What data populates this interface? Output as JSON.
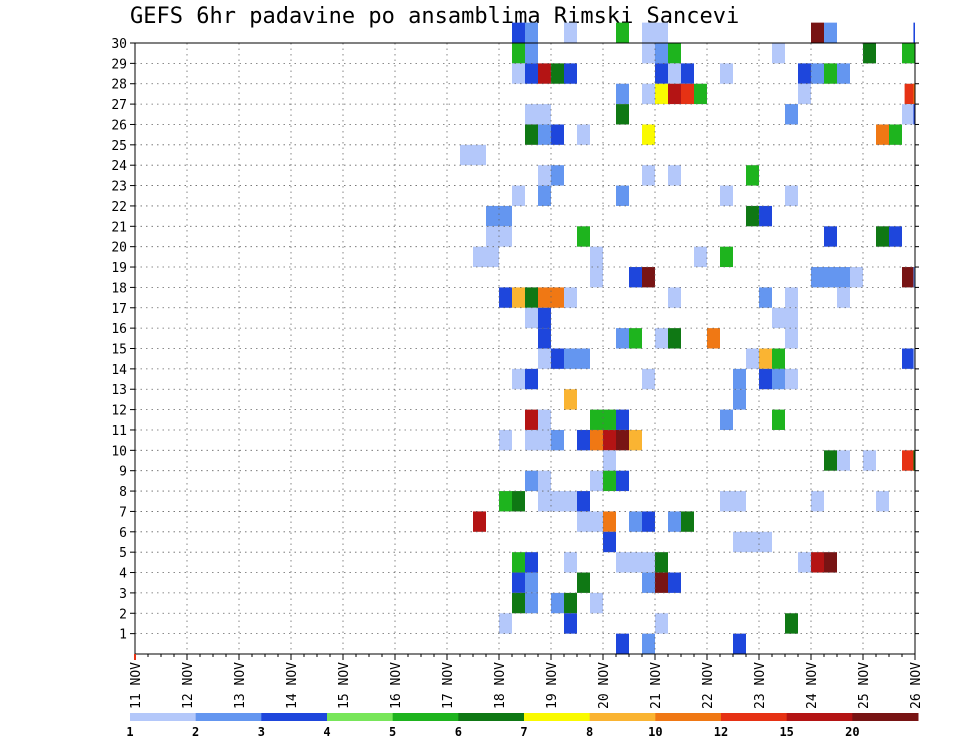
{
  "chart_data": {
    "type": "heatmap",
    "title": "GEFS 6hr padavine po ansamblima Rimski Sancevi",
    "xlabel": "",
    "ylabel": "",
    "x_tick_labels": [
      "11 NOV",
      "12 NOV",
      "13 NOV",
      "14 NOV",
      "15 NOV",
      "16 NOV",
      "17 NOV",
      "18 NOV",
      "19 NOV",
      "20 NOV",
      "21 NOV",
      "22 NOV",
      "23 NOV",
      "24 NOV",
      "25 NOV",
      "26 NOV"
    ],
    "y_tick_labels": [
      "1",
      "2",
      "3",
      "4",
      "5",
      "6",
      "7",
      "8",
      "9",
      "10",
      "11",
      "12",
      "13",
      "14",
      "15",
      "16",
      "17",
      "18",
      "19",
      "20",
      "21",
      "22",
      "23",
      "24",
      "25",
      "26",
      "27",
      "28",
      "29",
      "30"
    ],
    "xlim": [
      0,
      15
    ],
    "ylim": [
      0,
      30
    ],
    "grid": true,
    "legend": {
      "thresholds": [
        "1",
        "2",
        "3",
        "4",
        "5",
        "6",
        "7",
        "8",
        "10",
        "12",
        "15",
        "20"
      ],
      "colors": [
        "#b4c8fa",
        "#6496f0",
        "#1e46dc",
        "#78e65a",
        "#1eb41e",
        "#0f7814",
        "#fafa00",
        "#fab432",
        "#f07814",
        "#e63214",
        "#b41414",
        "#781414"
      ]
    },
    "cells": [
      [
        30,
        7.25,
        3
      ],
      [
        30,
        7.5,
        2
      ],
      [
        30,
        8.25,
        1
      ],
      [
        30,
        9.25,
        5
      ],
      [
        30,
        9.75,
        1
      ],
      [
        30,
        10.0,
        1
      ],
      [
        30,
        13.0,
        20
      ],
      [
        30,
        13.25,
        2
      ],
      [
        30,
        14.97,
        3
      ],
      [
        29,
        7.25,
        5
      ],
      [
        29,
        7.5,
        2
      ],
      [
        29,
        9.75,
        1
      ],
      [
        29,
        10.0,
        2
      ],
      [
        29,
        10.25,
        5
      ],
      [
        29,
        12.25,
        1
      ],
      [
        29,
        14.0,
        6
      ],
      [
        29,
        14.75,
        5
      ],
      [
        28,
        7.25,
        1
      ],
      [
        28,
        7.5,
        3
      ],
      [
        28,
        7.75,
        15
      ],
      [
        28,
        8.0,
        6
      ],
      [
        28,
        8.25,
        3
      ],
      [
        28,
        10.0,
        3
      ],
      [
        28,
        10.25,
        1
      ],
      [
        28,
        10.5,
        3
      ],
      [
        28,
        11.25,
        1
      ],
      [
        28,
        12.75,
        3
      ],
      [
        28,
        13.0,
        2
      ],
      [
        28,
        13.25,
        5
      ],
      [
        28,
        13.5,
        2
      ],
      [
        27,
        9.25,
        2
      ],
      [
        27,
        9.75,
        1
      ],
      [
        27,
        10.0,
        7
      ],
      [
        27,
        10.25,
        15
      ],
      [
        27,
        10.5,
        12
      ],
      [
        27,
        10.75,
        5
      ],
      [
        27,
        12.75,
        1
      ],
      [
        27,
        14.8,
        12
      ],
      [
        27,
        14.97,
        10
      ],
      [
        26,
        7.5,
        1
      ],
      [
        26,
        7.75,
        1
      ],
      [
        26,
        9.25,
        6
      ],
      [
        26,
        12.5,
        2
      ],
      [
        26,
        14.75,
        1
      ],
      [
        26,
        14.97,
        3
      ],
      [
        25,
        7.5,
        6
      ],
      [
        25,
        7.75,
        2
      ],
      [
        25,
        8.0,
        3
      ],
      [
        25,
        8.5,
        1
      ],
      [
        25,
        9.75,
        7
      ],
      [
        25,
        14.25,
        10
      ],
      [
        25,
        14.5,
        5
      ],
      [
        24,
        6.25,
        1
      ],
      [
        24,
        6.5,
        1
      ],
      [
        23,
        7.75,
        1
      ],
      [
        23,
        8.0,
        2
      ],
      [
        23,
        9.75,
        1
      ],
      [
        23,
        10.25,
        1
      ],
      [
        23,
        11.75,
        5
      ],
      [
        22,
        7.25,
        1
      ],
      [
        22,
        7.75,
        2
      ],
      [
        22,
        9.25,
        2
      ],
      [
        22,
        11.25,
        1
      ],
      [
        22,
        12.5,
        1
      ],
      [
        21,
        6.75,
        2
      ],
      [
        21,
        7.0,
        2
      ],
      [
        21,
        11.75,
        6
      ],
      [
        21,
        12.0,
        3
      ],
      [
        20,
        6.75,
        1
      ],
      [
        20,
        7.0,
        1
      ],
      [
        20,
        8.5,
        5
      ],
      [
        20,
        13.25,
        3
      ],
      [
        20,
        14.25,
        6
      ],
      [
        20,
        14.5,
        3
      ],
      [
        19,
        6.5,
        1
      ],
      [
        19,
        6.75,
        1
      ],
      [
        19,
        8.75,
        1
      ],
      [
        19,
        10.75,
        1
      ],
      [
        19,
        11.25,
        5
      ],
      [
        18,
        8.75,
        1
      ],
      [
        18,
        9.5,
        3
      ],
      [
        18,
        9.75,
        20
      ],
      [
        18,
        13.0,
        2
      ],
      [
        18,
        13.25,
        2
      ],
      [
        18,
        13.5,
        2
      ],
      [
        18,
        13.75,
        1
      ],
      [
        18,
        14.75,
        20
      ],
      [
        18,
        14.97,
        2
      ],
      [
        17,
        7.0,
        3
      ],
      [
        17,
        7.25,
        8
      ],
      [
        17,
        7.5,
        6
      ],
      [
        17,
        7.75,
        10
      ],
      [
        17,
        8.0,
        10
      ],
      [
        17,
        8.25,
        1
      ],
      [
        17,
        10.25,
        1
      ],
      [
        17,
        12.0,
        2
      ],
      [
        17,
        12.5,
        1
      ],
      [
        17,
        13.5,
        1
      ],
      [
        16,
        7.5,
        1
      ],
      [
        16,
        7.75,
        3
      ],
      [
        16,
        12.25,
        1
      ],
      [
        16,
        12.5,
        1
      ],
      [
        15,
        7.75,
        3
      ],
      [
        15,
        9.25,
        2
      ],
      [
        15,
        9.5,
        5
      ],
      [
        15,
        10.0,
        1
      ],
      [
        15,
        10.25,
        6
      ],
      [
        15,
        11.0,
        10
      ],
      [
        15,
        12.5,
        1
      ],
      [
        14,
        7.75,
        1
      ],
      [
        14,
        8.0,
        3
      ],
      [
        14,
        8.25,
        2
      ],
      [
        14,
        8.5,
        2
      ],
      [
        14,
        11.75,
        1
      ],
      [
        14,
        12.0,
        8
      ],
      [
        14,
        12.25,
        5
      ],
      [
        14,
        14.75,
        3
      ],
      [
        14,
        14.97,
        1
      ],
      [
        13,
        7.25,
        1
      ],
      [
        13,
        7.5,
        3
      ],
      [
        13,
        9.75,
        1
      ],
      [
        13,
        11.5,
        2
      ],
      [
        13,
        12.0,
        3
      ],
      [
        13,
        12.25,
        2
      ],
      [
        13,
        12.5,
        1
      ],
      [
        12,
        8.25,
        8
      ],
      [
        12,
        11.5,
        2
      ],
      [
        11,
        7.5,
        15
      ],
      [
        11,
        7.75,
        1
      ],
      [
        11,
        8.75,
        5
      ],
      [
        11,
        9.0,
        5
      ],
      [
        11,
        9.25,
        3
      ],
      [
        11,
        11.25,
        2
      ],
      [
        11,
        12.25,
        5
      ],
      [
        10,
        7.0,
        1
      ],
      [
        10,
        7.5,
        1
      ],
      [
        10,
        7.75,
        1
      ],
      [
        10,
        8.0,
        2
      ],
      [
        10,
        8.5,
        3
      ],
      [
        10,
        8.75,
        10
      ],
      [
        10,
        9.0,
        15
      ],
      [
        10,
        9.25,
        20
      ],
      [
        10,
        9.5,
        8
      ],
      [
        9,
        9.0,
        1
      ],
      [
        9,
        13.25,
        6
      ],
      [
        9,
        13.5,
        1
      ],
      [
        9,
        14.0,
        1
      ],
      [
        9,
        14.75,
        12
      ],
      [
        9,
        14.97,
        6
      ],
      [
        8,
        7.5,
        2
      ],
      [
        8,
        7.75,
        1
      ],
      [
        8,
        8.75,
        1
      ],
      [
        8,
        9.0,
        5
      ],
      [
        8,
        9.25,
        3
      ],
      [
        7,
        7.0,
        5
      ],
      [
        7,
        7.25,
        6
      ],
      [
        7,
        7.75,
        1
      ],
      [
        7,
        8.0,
        1
      ],
      [
        7,
        8.25,
        1
      ],
      [
        7,
        8.5,
        3
      ],
      [
        7,
        11.25,
        1
      ],
      [
        7,
        11.5,
        1
      ],
      [
        7,
        13.0,
        1
      ],
      [
        7,
        14.25,
        1
      ],
      [
        6,
        6.5,
        15
      ],
      [
        6,
        8.5,
        1
      ],
      [
        6,
        8.75,
        1
      ],
      [
        6,
        9.0,
        10
      ],
      [
        6,
        9.5,
        2
      ],
      [
        6,
        9.75,
        3
      ],
      [
        6,
        10.25,
        2
      ],
      [
        6,
        10.5,
        6
      ],
      [
        5,
        9.0,
        3
      ],
      [
        5,
        11.5,
        1
      ],
      [
        5,
        11.75,
        1
      ],
      [
        5,
        12.0,
        1
      ],
      [
        4,
        7.25,
        5
      ],
      [
        4,
        7.5,
        3
      ],
      [
        4,
        8.25,
        1
      ],
      [
        4,
        9.25,
        1
      ],
      [
        4,
        9.5,
        1
      ],
      [
        4,
        9.75,
        1
      ],
      [
        4,
        10.0,
        6
      ],
      [
        4,
        12.75,
        1
      ],
      [
        4,
        13.0,
        15
      ],
      [
        4,
        13.25,
        20
      ],
      [
        3,
        7.25,
        3
      ],
      [
        3,
        7.5,
        2
      ],
      [
        3,
        8.5,
        6
      ],
      [
        3,
        9.75,
        2
      ],
      [
        3,
        10.0,
        20
      ],
      [
        3,
        10.25,
        3
      ],
      [
        2,
        7.25,
        6
      ],
      [
        2,
        7.5,
        2
      ],
      [
        2,
        8.0,
        2
      ],
      [
        2,
        8.25,
        6
      ],
      [
        2,
        8.75,
        1
      ],
      [
        1,
        7.0,
        1
      ],
      [
        1,
        8.25,
        3
      ],
      [
        1,
        10.0,
        1
      ],
      [
        1,
        12.5,
        6
      ],
      [
        0,
        9.25,
        3
      ],
      [
        0,
        9.75,
        2
      ],
      [
        0,
        11.5,
        3
      ]
    ]
  }
}
